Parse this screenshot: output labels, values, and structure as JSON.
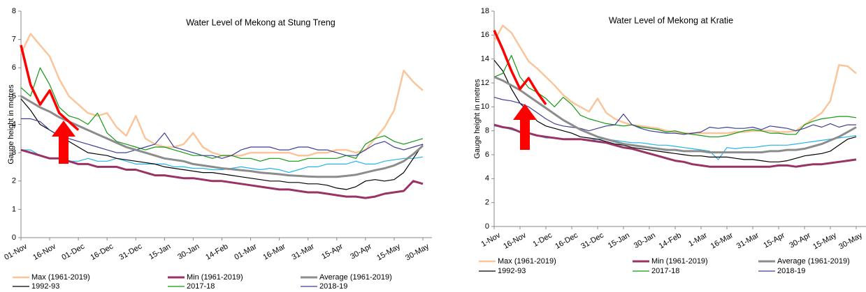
{
  "chart_data": [
    {
      "type": "line",
      "title": "Water Level of Mekong at Stung Treng",
      "y_label": "Gauge height in metres",
      "categories": [
        "01-Nov",
        null,
        null,
        "16-Nov",
        null,
        null,
        "01-Dec",
        null,
        null,
        "16-Dec",
        null,
        null,
        "31-Dec",
        null,
        null,
        "15-Jan",
        null,
        null,
        "30-Jan",
        null,
        null,
        "14-Feb",
        null,
        null,
        "01-Mar",
        null,
        null,
        "16-Mar",
        null,
        null,
        "31-Mar",
        null,
        null,
        "15-Apr",
        null,
        null,
        "30-Apr",
        null,
        null,
        "15-May",
        null,
        null,
        "30-May"
      ],
      "ylim": [
        0,
        8
      ],
      "yticks": [
        0,
        1,
        2,
        3,
        4,
        5,
        6,
        7,
        8
      ],
      "series": [
        {
          "name": "Max (1961-2019)",
          "color": "#fac59a",
          "width": 2.5,
          "values": [
            6.5,
            7.2,
            6.8,
            6.4,
            5.6,
            5.0,
            4.7,
            4.4,
            4.3,
            4.4,
            3.9,
            3.6,
            4.3,
            3.5,
            3.3,
            3.2,
            3.2,
            3.3,
            3.7,
            3.2,
            3.0,
            2.9,
            2.9,
            2.9,
            3.0,
            3.0,
            3.0,
            3.0,
            3.0,
            2.9,
            2.9,
            3.0,
            3.0,
            3.1,
            3.1,
            3.0,
            3.1,
            3.5,
            3.9,
            4.5,
            5.9,
            5.5,
            5.2
          ]
        },
        {
          "name": "Min (1961-2019)",
          "color": "#993366",
          "width": 3,
          "values": [
            3.1,
            3.0,
            2.9,
            2.8,
            2.8,
            2.7,
            2.6,
            2.6,
            2.5,
            2.5,
            2.5,
            2.4,
            2.4,
            2.3,
            2.2,
            2.2,
            2.15,
            2.1,
            2.1,
            2.05,
            2.0,
            2.0,
            1.95,
            1.9,
            1.85,
            1.8,
            1.75,
            1.7,
            1.7,
            1.65,
            1.6,
            1.6,
            1.55,
            1.5,
            1.45,
            1.45,
            1.4,
            1.45,
            1.55,
            1.6,
            1.65,
            2.0,
            1.9
          ]
        },
        {
          "name": "Average (1961-2019)",
          "color": "#8c8c8c",
          "width": 3,
          "values": [
            5.0,
            4.8,
            4.6,
            4.45,
            4.25,
            4.1,
            3.95,
            3.8,
            3.65,
            3.5,
            3.35,
            3.2,
            3.1,
            3.0,
            2.9,
            2.8,
            2.75,
            2.7,
            2.6,
            2.55,
            2.5,
            2.45,
            2.42,
            2.38,
            2.35,
            2.3,
            2.27,
            2.24,
            2.2,
            2.18,
            2.16,
            2.15,
            2.15,
            2.15,
            2.18,
            2.22,
            2.3,
            2.38,
            2.45,
            2.55,
            2.7,
            2.95,
            3.25
          ]
        },
        {
          "name": "1992-93",
          "color": "#000000",
          "width": 1.2,
          "values": [
            4.9,
            4.5,
            4.0,
            3.8,
            3.6,
            3.4,
            3.2,
            3.0,
            2.95,
            2.9,
            2.8,
            2.75,
            2.7,
            2.65,
            2.6,
            2.5,
            2.45,
            2.4,
            2.35,
            2.3,
            2.3,
            2.25,
            2.2,
            2.15,
            2.1,
            2.05,
            2.0,
            2.0,
            1.95,
            1.95,
            1.9,
            1.9,
            1.85,
            1.75,
            1.7,
            1.8,
            2.0,
            2.05,
            2.0,
            2.05,
            2.3,
            2.8,
            3.3
          ]
        },
        {
          "name": "2017-18",
          "color": "#119911",
          "width": 1.2,
          "values": [
            5.3,
            5.0,
            6.0,
            5.4,
            4.6,
            4.3,
            4.2,
            4.0,
            4.4,
            3.7,
            3.4,
            3.3,
            3.2,
            3.1,
            3.2,
            3.2,
            3.1,
            3.0,
            2.9,
            2.9,
            2.8,
            2.9,
            2.9,
            2.8,
            2.8,
            2.7,
            2.8,
            2.8,
            2.7,
            2.7,
            2.8,
            2.8,
            2.8,
            2.8,
            2.9,
            2.8,
            3.3,
            3.5,
            3.6,
            3.4,
            3.3,
            3.4,
            3.5
          ]
        },
        {
          "name": "2018-19",
          "color": "#3f3f99",
          "width": 1.2,
          "values": [
            4.2,
            4.2,
            4.1,
            3.8,
            3.6,
            3.5,
            3.4,
            3.3,
            3.2,
            3.1,
            3.0,
            3.0,
            3.1,
            3.2,
            3.3,
            3.7,
            3.2,
            3.1,
            3.0,
            2.9,
            2.9,
            2.8,
            2.9,
            3.1,
            3.2,
            3.2,
            3.2,
            3.1,
            3.1,
            3.2,
            3.2,
            3.1,
            3.1,
            3.0,
            2.9,
            2.9,
            3.1,
            3.3,
            3.4,
            3.2,
            3.1,
            3.2,
            3.3
          ]
        },
        {
          "color": "#22b4ea",
          "width": 1.2,
          "values": [
            3.1,
            3.1,
            2.9,
            2.8,
            2.8,
            2.7,
            2.7,
            2.8,
            2.7,
            2.7,
            2.8,
            2.7,
            2.6,
            2.6,
            2.6,
            2.6,
            2.5,
            2.5,
            2.45,
            2.45,
            2.4,
            2.4,
            2.45,
            2.5,
            2.45,
            2.4,
            2.45,
            2.4,
            2.3,
            2.4,
            2.5,
            2.5,
            2.6,
            2.6,
            2.6,
            2.7,
            2.6,
            2.6,
            2.7,
            2.75,
            2.8,
            2.8,
            2.85
          ]
        },
        {
          "color": "#ff0000",
          "width": 3.5,
          "values": [
            6.8,
            5.4,
            4.7,
            5.2,
            4.4,
            4.1,
            3.8,
            null,
            null,
            null,
            null,
            null,
            null,
            null,
            null,
            null,
            null,
            null,
            null,
            null,
            null,
            null,
            null,
            null,
            null,
            null,
            null,
            null,
            null,
            null,
            null,
            null,
            null,
            null,
            null,
            null,
            null,
            null,
            null,
            null,
            null,
            null,
            null
          ]
        }
      ]
    },
    {
      "type": "line",
      "title": "Water Level of Mekong at Kratie",
      "y_label": "Gauge height in metres",
      "categories": [
        "1-Nov",
        null,
        null,
        "16-Nov",
        null,
        null,
        "1-Dec",
        null,
        null,
        "16-Dec",
        null,
        null,
        "31-Dec",
        null,
        null,
        "15-Jan",
        null,
        null,
        "30-Jan",
        null,
        null,
        "14-Feb",
        null,
        null,
        "1-Mar",
        null,
        null,
        "16-Mar",
        null,
        null,
        "31-Mar",
        null,
        null,
        "15-Apr",
        null,
        null,
        "30-Apr",
        null,
        null,
        "15-May",
        null,
        null,
        "30-May"
      ],
      "ylim": [
        0,
        18
      ],
      "yticks": [
        0,
        2,
        4,
        6,
        8,
        10,
        12,
        14,
        16,
        18
      ],
      "series": [
        {
          "name": "Max (1961-2019)",
          "color": "#fac59a",
          "width": 2.5,
          "values": [
            15.5,
            16.8,
            16.2,
            15.0,
            13.8,
            13.2,
            12.5,
            11.8,
            11.0,
            10.4,
            10.0,
            9.6,
            10.7,
            9.5,
            9.0,
            8.7,
            8.5,
            8.4,
            8.3,
            8.2,
            8.0,
            7.9,
            7.8,
            7.8,
            7.8,
            7.8,
            7.8,
            7.8,
            7.9,
            7.9,
            8.0,
            8.0,
            8.0,
            7.9,
            7.9,
            8.0,
            8.5,
            9.0,
            9.5,
            10.5,
            13.5,
            13.4,
            12.8
          ]
        },
        {
          "name": "Min (1961-2019)",
          "color": "#993366",
          "width": 3,
          "values": [
            8.5,
            8.3,
            8.2,
            7.9,
            7.8,
            7.6,
            7.5,
            7.4,
            7.3,
            7.3,
            7.3,
            7.2,
            7.1,
            7.0,
            6.8,
            6.6,
            6.5,
            6.3,
            6.1,
            5.9,
            5.7,
            5.5,
            5.4,
            5.2,
            5.1,
            5.0,
            5.0,
            5.0,
            5.0,
            5.0,
            5.0,
            5.0,
            5.0,
            5.1,
            5.1,
            5.0,
            5.1,
            5.2,
            5.2,
            5.3,
            5.4,
            5.5,
            5.6
          ]
        },
        {
          "name": "Average (1961-2019)",
          "color": "#8c8c8c",
          "width": 3,
          "values": [
            12.5,
            12.2,
            11.8,
            11.4,
            10.9,
            10.4,
            9.9,
            9.4,
            8.9,
            8.5,
            8.1,
            7.8,
            7.5,
            7.3,
            7.1,
            6.9,
            6.8,
            6.7,
            6.6,
            6.5,
            6.4,
            6.4,
            6.3,
            6.3,
            6.3,
            6.2,
            6.2,
            6.2,
            6.2,
            6.2,
            6.2,
            6.2,
            6.3,
            6.3,
            6.4,
            6.4,
            6.5,
            6.7,
            6.9,
            7.2,
            7.5,
            7.9,
            8.3
          ]
        },
        {
          "name": "1992-93",
          "color": "#000000",
          "width": 1.2,
          "values": [
            13.9,
            13.0,
            11.5,
            10.3,
            9.6,
            8.8,
            8.4,
            8.2,
            8.0,
            7.8,
            7.5,
            7.4,
            7.3,
            7.1,
            6.9,
            6.8,
            6.6,
            6.5,
            6.4,
            6.3,
            6.2,
            6.1,
            6.0,
            5.9,
            5.9,
            5.8,
            5.8,
            5.8,
            5.7,
            5.6,
            5.6,
            5.5,
            5.4,
            5.4,
            5.5,
            5.7,
            5.9,
            6.0,
            6.1,
            6.3,
            6.8,
            7.3,
            7.5
          ]
        },
        {
          "name": "2017-18",
          "color": "#119911",
          "width": 1.2,
          "values": [
            12.5,
            12.8,
            14.3,
            12.5,
            11.6,
            11.2,
            10.7,
            10.0,
            10.8,
            10.2,
            9.3,
            9.0,
            8.8,
            8.6,
            8.5,
            8.4,
            8.5,
            8.3,
            8.2,
            8.1,
            7.9,
            8.0,
            7.8,
            7.7,
            7.6,
            7.5,
            7.5,
            7.6,
            7.8,
            8.0,
            8.1,
            8.0,
            7.8,
            7.8,
            7.7,
            7.7,
            8.5,
            8.8,
            9.0,
            9.1,
            9.2,
            9.2,
            9.1
          ]
        },
        {
          "name": "2018-19",
          "color": "#3f3f99",
          "width": 1.2,
          "values": [
            10.8,
            10.6,
            10.5,
            10.3,
            10.0,
            9.5,
            9.0,
            8.6,
            8.4,
            8.3,
            8.2,
            8.0,
            8.2,
            8.4,
            8.5,
            9.4,
            8.5,
            8.2,
            8.0,
            7.9,
            7.8,
            7.8,
            7.7,
            7.8,
            7.9,
            8.3,
            8.2,
            8.3,
            8.2,
            8.2,
            8.3,
            8.1,
            8.4,
            8.3,
            8.2,
            8.0,
            8.2,
            8.5,
            8.3,
            8.6,
            8.3,
            8.5,
            8.5
          ]
        },
        {
          "color": "#22b4ea",
          "width": 1.2,
          "values": [
            8.4,
            8.3,
            8.1,
            7.9,
            7.8,
            7.6,
            7.4,
            7.4,
            7.3,
            7.3,
            7.3,
            7.2,
            7.3,
            7.3,
            7.2,
            7.1,
            7.0,
            7.0,
            6.9,
            6.8,
            6.8,
            6.7,
            6.6,
            6.5,
            6.4,
            6.3,
            5.6,
            6.6,
            6.5,
            6.6,
            6.6,
            6.7,
            6.8,
            6.8,
            6.8,
            6.9,
            7.0,
            7.1,
            7.2,
            7.3,
            7.4,
            7.5,
            7.6
          ]
        },
        {
          "color": "#ff0000",
          "width": 3.5,
          "values": [
            16.4,
            14.8,
            13.0,
            11.5,
            12.4,
            11.2,
            10.2,
            null,
            null,
            null,
            null,
            null,
            null,
            null,
            null,
            null,
            null,
            null,
            null,
            null,
            null,
            null,
            null,
            null,
            null,
            null,
            null,
            null,
            null,
            null,
            null,
            null,
            null,
            null,
            null,
            null,
            null,
            null,
            null,
            null,
            null,
            null,
            null
          ]
        }
      ]
    }
  ]
}
